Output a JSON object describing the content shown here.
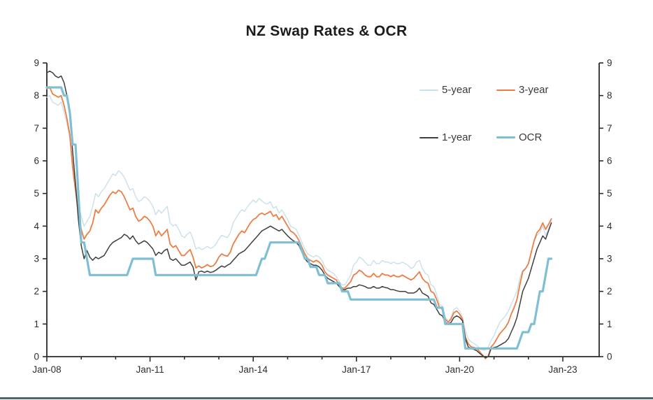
{
  "page": {
    "background": "#ffffff",
    "bottom_bar_color": "#4D6670"
  },
  "chart_data": {
    "type": "line",
    "title": "NZ Swap Rates & OCR",
    "x_start": "2008-01",
    "x_interval": "monthly",
    "x_tick_labels": [
      "Jan-08",
      "Jan-11",
      "Jan-14",
      "Jan-17",
      "Jan-20",
      "Jan-23"
    ],
    "x_major_years": [
      2008,
      2011,
      2014,
      2017,
      2020,
      2023
    ],
    "ylim": [
      0,
      9
    ],
    "y_ticks": [
      "0",
      "1",
      "2",
      "3",
      "4",
      "5",
      "6",
      "7",
      "8",
      "9"
    ],
    "dual_y_axis": true,
    "grid": false,
    "legend_position": "top-right",
    "axis_color": "#2b2b2b",
    "tick_label_color": "#2e2e2e",
    "series": [
      {
        "name": "5-year",
        "color": "#C9E0EA",
        "width": 1.4,
        "values": [
          7.95,
          8.0,
          7.8,
          7.75,
          7.7,
          7.8,
          7.5,
          7.15,
          6.7,
          5.9,
          5.3,
          4.7,
          4.3,
          4.0,
          4.15,
          4.3,
          4.6,
          5.0,
          4.9,
          5.05,
          5.15,
          5.3,
          5.45,
          5.6,
          5.55,
          5.7,
          5.62,
          5.5,
          5.3,
          5.1,
          5.15,
          4.9,
          4.75,
          4.8,
          4.9,
          4.85,
          4.75,
          4.6,
          4.35,
          4.5,
          4.4,
          4.5,
          4.6,
          4.1,
          4.0,
          4.05,
          3.9,
          3.7,
          3.65,
          3.75,
          3.82,
          3.6,
          3.3,
          3.35,
          3.28,
          3.32,
          3.38,
          3.32,
          3.35,
          3.45,
          3.6,
          3.72,
          3.68,
          3.65,
          3.8,
          4.1,
          4.25,
          4.4,
          4.5,
          4.45,
          4.6,
          4.7,
          4.8,
          4.72,
          4.85,
          4.78,
          4.7,
          4.68,
          4.75,
          4.55,
          4.6,
          4.4,
          4.5,
          4.35,
          4.2,
          4.0,
          3.95,
          3.9,
          3.7,
          3.5,
          3.3,
          3.15,
          3.1,
          3.05,
          3.1,
          3.05,
          2.95,
          2.75,
          2.65,
          2.6,
          2.55,
          2.45,
          2.3,
          2.2,
          2.2,
          2.35,
          2.5,
          2.8,
          2.9,
          3.05,
          3.0,
          2.9,
          2.8,
          2.8,
          2.95,
          2.85,
          2.85,
          2.95,
          2.9,
          2.9,
          2.85,
          2.9,
          2.85,
          2.85,
          2.9,
          2.85,
          2.8,
          2.7,
          2.75,
          2.9,
          2.95,
          2.7,
          2.55,
          2.5,
          2.2,
          2.15,
          1.9,
          1.6,
          1.55,
          1.2,
          1.1,
          1.2,
          1.45,
          1.5,
          1.4,
          1.2,
          0.8,
          0.55,
          0.45,
          0.4,
          0.35,
          0.25,
          0.2,
          0.2,
          0.3,
          0.5,
          0.65,
          0.85,
          1.05,
          1.15,
          1.25,
          1.4,
          1.6,
          1.8,
          2.0,
          2.4,
          2.65,
          2.7,
          2.85,
          3.22,
          3.55,
          3.72,
          3.8,
          4.0,
          3.72,
          3.92,
          4.15
        ]
      },
      {
        "name": "3-year",
        "color": "#ED7D44",
        "width": 1.8,
        "values": [
          8.2,
          8.25,
          8.05,
          8.0,
          7.95,
          8.0,
          7.7,
          7.3,
          6.8,
          5.8,
          5.1,
          4.4,
          3.9,
          3.6,
          3.75,
          3.85,
          4.1,
          4.5,
          4.4,
          4.55,
          4.65,
          4.8,
          4.95,
          5.05,
          5.0,
          5.1,
          5.05,
          4.9,
          4.7,
          4.5,
          4.55,
          4.3,
          4.15,
          4.2,
          4.3,
          4.25,
          4.15,
          4.0,
          3.7,
          3.85,
          3.7,
          3.8,
          3.9,
          3.45,
          3.35,
          3.4,
          3.25,
          3.1,
          3.1,
          3.2,
          3.28,
          3.05,
          2.72,
          2.78,
          2.72,
          2.76,
          2.82,
          2.76,
          2.78,
          2.88,
          3.05,
          3.15,
          3.1,
          3.08,
          3.2,
          3.45,
          3.6,
          3.75,
          3.85,
          3.8,
          3.95,
          4.1,
          4.2,
          4.25,
          4.35,
          4.4,
          4.35,
          4.4,
          4.45,
          4.3,
          4.35,
          4.2,
          4.3,
          4.15,
          4.0,
          3.85,
          3.8,
          3.7,
          3.55,
          3.35,
          3.15,
          3.0,
          2.95,
          2.9,
          2.95,
          2.9,
          2.8,
          2.6,
          2.5,
          2.45,
          2.4,
          2.35,
          2.2,
          2.1,
          2.1,
          2.2,
          2.3,
          2.5,
          2.55,
          2.65,
          2.6,
          2.5,
          2.45,
          2.45,
          2.55,
          2.45,
          2.45,
          2.55,
          2.5,
          2.5,
          2.45,
          2.5,
          2.45,
          2.45,
          2.5,
          2.45,
          2.4,
          2.35,
          2.4,
          2.5,
          2.6,
          2.4,
          2.3,
          2.25,
          2.0,
          1.95,
          1.75,
          1.5,
          1.45,
          1.15,
          1.05,
          1.15,
          1.35,
          1.4,
          1.3,
          1.15,
          0.6,
          0.4,
          0.3,
          0.28,
          0.25,
          0.15,
          0.05,
          -0.06,
          0.02,
          0.3,
          0.4,
          0.55,
          0.7,
          0.8,
          0.9,
          1.05,
          1.3,
          1.5,
          1.75,
          2.2,
          2.6,
          2.7,
          2.85,
          3.2,
          3.55,
          3.8,
          3.9,
          4.1,
          3.9,
          4.05,
          4.22
        ]
      },
      {
        "name": "1-year",
        "color": "#3F3F3F",
        "width": 1.5,
        "values": [
          8.7,
          8.75,
          8.7,
          8.6,
          8.55,
          8.6,
          8.4,
          8.0,
          7.4,
          6.3,
          5.3,
          4.2,
          3.4,
          3.0,
          3.25,
          3.05,
          2.95,
          3.05,
          3.0,
          3.05,
          3.1,
          3.25,
          3.4,
          3.5,
          3.55,
          3.6,
          3.65,
          3.75,
          3.7,
          3.6,
          3.7,
          3.55,
          3.45,
          3.5,
          3.55,
          3.5,
          3.4,
          3.3,
          3.1,
          3.2,
          3.15,
          3.25,
          3.3,
          3.0,
          2.95,
          3.0,
          2.9,
          2.8,
          2.8,
          2.85,
          2.9,
          2.75,
          2.35,
          2.6,
          2.62,
          2.58,
          2.62,
          2.58,
          2.6,
          2.65,
          2.72,
          2.78,
          2.74,
          2.8,
          2.85,
          2.95,
          3.05,
          3.15,
          3.2,
          3.25,
          3.35,
          3.45,
          3.55,
          3.65,
          3.75,
          3.85,
          3.9,
          3.95,
          4.0,
          3.95,
          3.9,
          3.85,
          3.9,
          3.8,
          3.7,
          3.62,
          3.55,
          3.5,
          3.4,
          3.2,
          3.0,
          2.9,
          2.85,
          2.8,
          2.8,
          2.75,
          2.65,
          2.5,
          2.4,
          2.35,
          2.3,
          2.25,
          2.15,
          2.05,
          2.05,
          2.1,
          2.1,
          2.15,
          2.15,
          2.2,
          2.18,
          2.15,
          2.1,
          2.1,
          2.15,
          2.1,
          2.1,
          2.15,
          2.12,
          2.1,
          2.05,
          2.05,
          2.02,
          2.0,
          2.0,
          2.0,
          1.95,
          1.95,
          1.95,
          2.0,
          2.1,
          1.95,
          1.9,
          1.85,
          1.65,
          1.6,
          1.45,
          1.3,
          1.25,
          1.05,
          1.0,
          1.05,
          1.2,
          1.25,
          1.2,
          1.1,
          0.55,
          0.3,
          0.25,
          0.22,
          0.18,
          0.1,
          0.03,
          -0.03,
          0.0,
          0.25,
          0.28,
          0.3,
          0.35,
          0.4,
          0.45,
          0.55,
          0.75,
          0.95,
          1.2,
          1.6,
          2.0,
          2.2,
          2.4,
          2.7,
          3.0,
          3.3,
          3.5,
          3.7,
          3.6,
          3.85,
          4.1
        ]
      },
      {
        "name": "OCR",
        "color": "#7FBFD3",
        "width": 3.2,
        "values": [
          8.25,
          8.25,
          8.25,
          8.25,
          8.25,
          8.25,
          8.0,
          8.0,
          7.5,
          6.5,
          6.5,
          5.0,
          3.5,
          3.5,
          3.0,
          2.5,
          2.5,
          2.5,
          2.5,
          2.5,
          2.5,
          2.5,
          2.5,
          2.5,
          2.5,
          2.5,
          2.5,
          2.5,
          2.5,
          2.75,
          3.0,
          3.0,
          3.0,
          3.0,
          3.0,
          3.0,
          3.0,
          3.0,
          2.5,
          2.5,
          2.5,
          2.5,
          2.5,
          2.5,
          2.5,
          2.5,
          2.5,
          2.5,
          2.5,
          2.5,
          2.5,
          2.5,
          2.5,
          2.5,
          2.5,
          2.5,
          2.5,
          2.5,
          2.5,
          2.5,
          2.5,
          2.5,
          2.5,
          2.5,
          2.5,
          2.5,
          2.5,
          2.5,
          2.5,
          2.5,
          2.5,
          2.5,
          2.5,
          2.5,
          2.75,
          3.0,
          3.0,
          3.25,
          3.5,
          3.5,
          3.5,
          3.5,
          3.5,
          3.5,
          3.5,
          3.5,
          3.5,
          3.5,
          3.5,
          3.25,
          3.0,
          3.0,
          2.75,
          2.75,
          2.75,
          2.5,
          2.5,
          2.5,
          2.25,
          2.25,
          2.25,
          2.25,
          2.25,
          2.0,
          2.0,
          2.0,
          1.75,
          1.75,
          1.75,
          1.75,
          1.75,
          1.75,
          1.75,
          1.75,
          1.75,
          1.75,
          1.75,
          1.75,
          1.75,
          1.75,
          1.75,
          1.75,
          1.75,
          1.75,
          1.75,
          1.75,
          1.75,
          1.75,
          1.75,
          1.75,
          1.75,
          1.75,
          1.75,
          1.75,
          1.75,
          1.75,
          1.5,
          1.5,
          1.5,
          1.0,
          1.0,
          1.0,
          1.0,
          1.0,
          1.0,
          1.0,
          0.25,
          0.25,
          0.25,
          0.25,
          0.25,
          0.25,
          0.25,
          0.25,
          0.25,
          0.25,
          0.25,
          0.25,
          0.25,
          0.25,
          0.25,
          0.25,
          0.25,
          0.25,
          0.25,
          0.5,
          0.75,
          0.75,
          0.75,
          1.0,
          1.0,
          1.5,
          2.0,
          2.0,
          2.5,
          3.0,
          3.0
        ]
      }
    ]
  }
}
